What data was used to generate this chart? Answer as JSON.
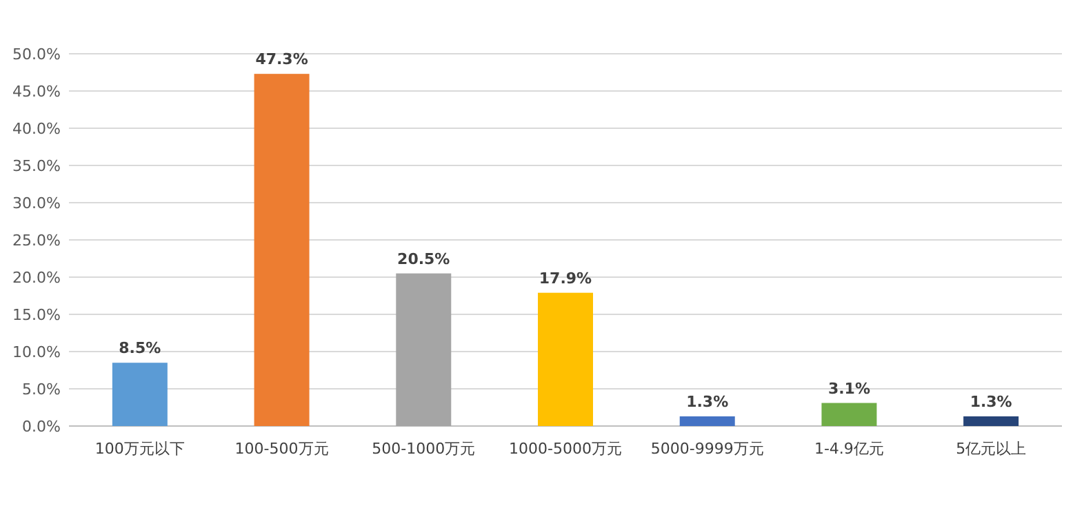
{
  "chart_data": {
    "type": "bar",
    "categories": [
      "100万元以下",
      "100-500万元",
      "500-1000万元",
      "1000-5000万元",
      "5000-9999万元",
      "1-4.9亿元",
      "5亿元以上"
    ],
    "values": [
      8.5,
      47.3,
      20.5,
      17.9,
      1.3,
      3.1,
      1.3
    ],
    "colors": [
      "#5b9bd5",
      "#ed7d31",
      "#a5a5a5",
      "#ffc000",
      "#4472c4",
      "#70ad47",
      "#264478"
    ],
    "value_labels": [
      "8.5%",
      "47.3%",
      "20.5%",
      "17.9%",
      "1.3%",
      "3.1%",
      "1.3%"
    ],
    "ylim": [
      0,
      50
    ],
    "yticks": [
      {
        "value": 0,
        "label": "0.0%"
      },
      {
        "value": 5,
        "label": "5.0%"
      },
      {
        "value": 10,
        "label": "10.0%"
      },
      {
        "value": 15,
        "label": "15.0%"
      },
      {
        "value": 20,
        "label": "20.0%"
      },
      {
        "value": 25,
        "label": "25.0%"
      },
      {
        "value": 30,
        "label": "30.0%"
      },
      {
        "value": 35,
        "label": "35.0%"
      },
      {
        "value": 40,
        "label": "40.0%"
      },
      {
        "value": 45,
        "label": "45.0%"
      },
      {
        "value": 50,
        "label": "50.0%"
      }
    ],
    "grid": "y"
  }
}
